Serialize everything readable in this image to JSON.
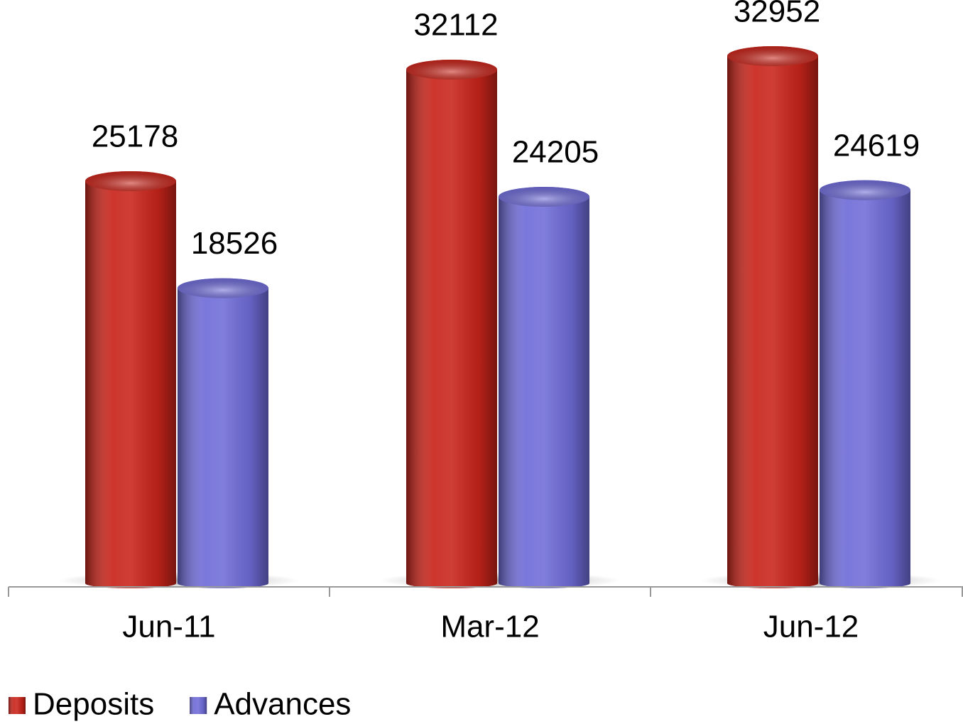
{
  "chart_data": {
    "type": "bar",
    "categories": [
      "Jun-11",
      "Mar-12",
      "Jun-12"
    ],
    "series": [
      {
        "name": "Deposits",
        "color": "#c8241a",
        "values": [
          25178,
          32112,
          32952
        ]
      },
      {
        "name": "Advances",
        "color": "#6f6cd8",
        "values": [
          18526,
          24205,
          24619
        ]
      }
    ],
    "legend": "bottom-left"
  }
}
